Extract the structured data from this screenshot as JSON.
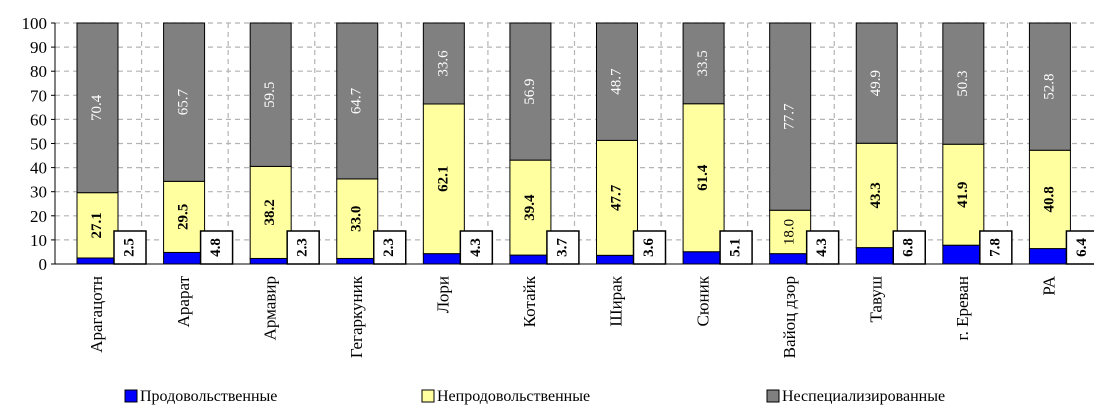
{
  "chart_data": {
    "type": "bar",
    "stacked": true,
    "ylim": [
      0,
      100
    ],
    "yticks": [
      0,
      10,
      20,
      30,
      40,
      50,
      60,
      70,
      80,
      90,
      100
    ],
    "grid": true,
    "legend_position": "bottom",
    "categories": [
      "Арагацотн",
      "Арарат",
      "Армавир",
      "Гегаркуник",
      "Лори",
      "Котайк",
      "Ширак",
      "Сюник",
      "Вайоц дзор",
      "Тавуш",
      "г. Ереван",
      "РА"
    ],
    "category_display": [
      "Арагацотн",
      "Арарат",
      "Армавир",
      "Гегаркуник",
      "Лори",
      "Котайк",
      "Ширак",
      "Сюник",
      "Вайоц дзор",
      "Тавуш",
      "г. Ереван",
      "РА"
    ],
    "series": [
      {
        "name": "Продовольственные",
        "color": "#0000ff",
        "values": [
          2.5,
          4.8,
          2.3,
          2.3,
          4.3,
          3.7,
          3.6,
          5.1,
          4.3,
          6.8,
          7.8,
          6.4
        ],
        "labels": [
          "2.5",
          "4.8",
          "2.3",
          "2.3",
          "4.3",
          "3.7",
          "3.6",
          "5.1",
          "4.3",
          "6.8",
          "7.8",
          "6.4"
        ]
      },
      {
        "name": "Непродовольственные",
        "color": "#ffffa0",
        "values": [
          27.1,
          29.5,
          38.2,
          33.0,
          62.1,
          39.4,
          47.7,
          61.4,
          18.0,
          43.3,
          41.9,
          40.8
        ],
        "labels": [
          "27.1",
          "29.5",
          "38.2",
          "33.0",
          "62.1",
          "39.4",
          "47.7",
          "61.4",
          "18.0",
          "43.3",
          "41.9",
          "40.8"
        ]
      },
      {
        "name": "Неспециализированные",
        "color": "#808080",
        "values": [
          70.4,
          65.7,
          59.5,
          64.7,
          33.6,
          56.9,
          48.7,
          33.5,
          77.7,
          49.9,
          50.3,
          52.8
        ],
        "labels": [
          "70.4",
          "65.7",
          "59.5",
          "64.7",
          "33.6",
          "56.9",
          "48.7",
          "33.5",
          "77.7",
          "49.9",
          "50.3",
          "52.8"
        ]
      }
    ]
  }
}
